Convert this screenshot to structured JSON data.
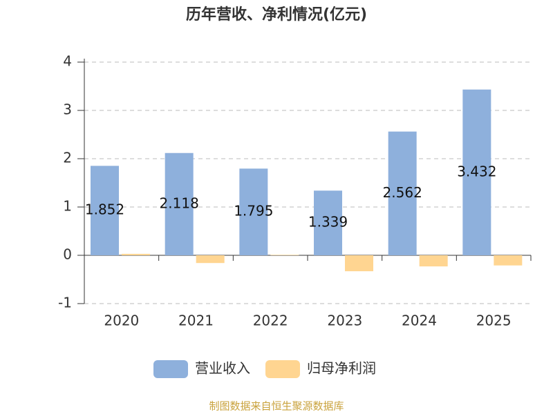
{
  "chart_data": {
    "type": "bar",
    "title": "历年营收、净利情况(亿元)",
    "categories": [
      "2020",
      "2021",
      "2022",
      "2023",
      "2024",
      "2025"
    ],
    "series": [
      {
        "name": "营业收入",
        "color": "#8eb0dc",
        "values": [
          1.852,
          2.118,
          1.795,
          1.339,
          2.562,
          3.432
        ],
        "show_labels": true
      },
      {
        "name": "归母净利润",
        "color": "#ffd591",
        "values": [
          0.03,
          -0.16,
          0.01,
          -0.33,
          -0.23,
          -0.21
        ],
        "show_labels": false
      }
    ],
    "ylim": [
      -1,
      4
    ],
    "yticks": [
      -1,
      0,
      1,
      2,
      3,
      4
    ],
    "grid": true,
    "legend": "bottom",
    "source": "制图数据来自恒生聚源数据库"
  }
}
